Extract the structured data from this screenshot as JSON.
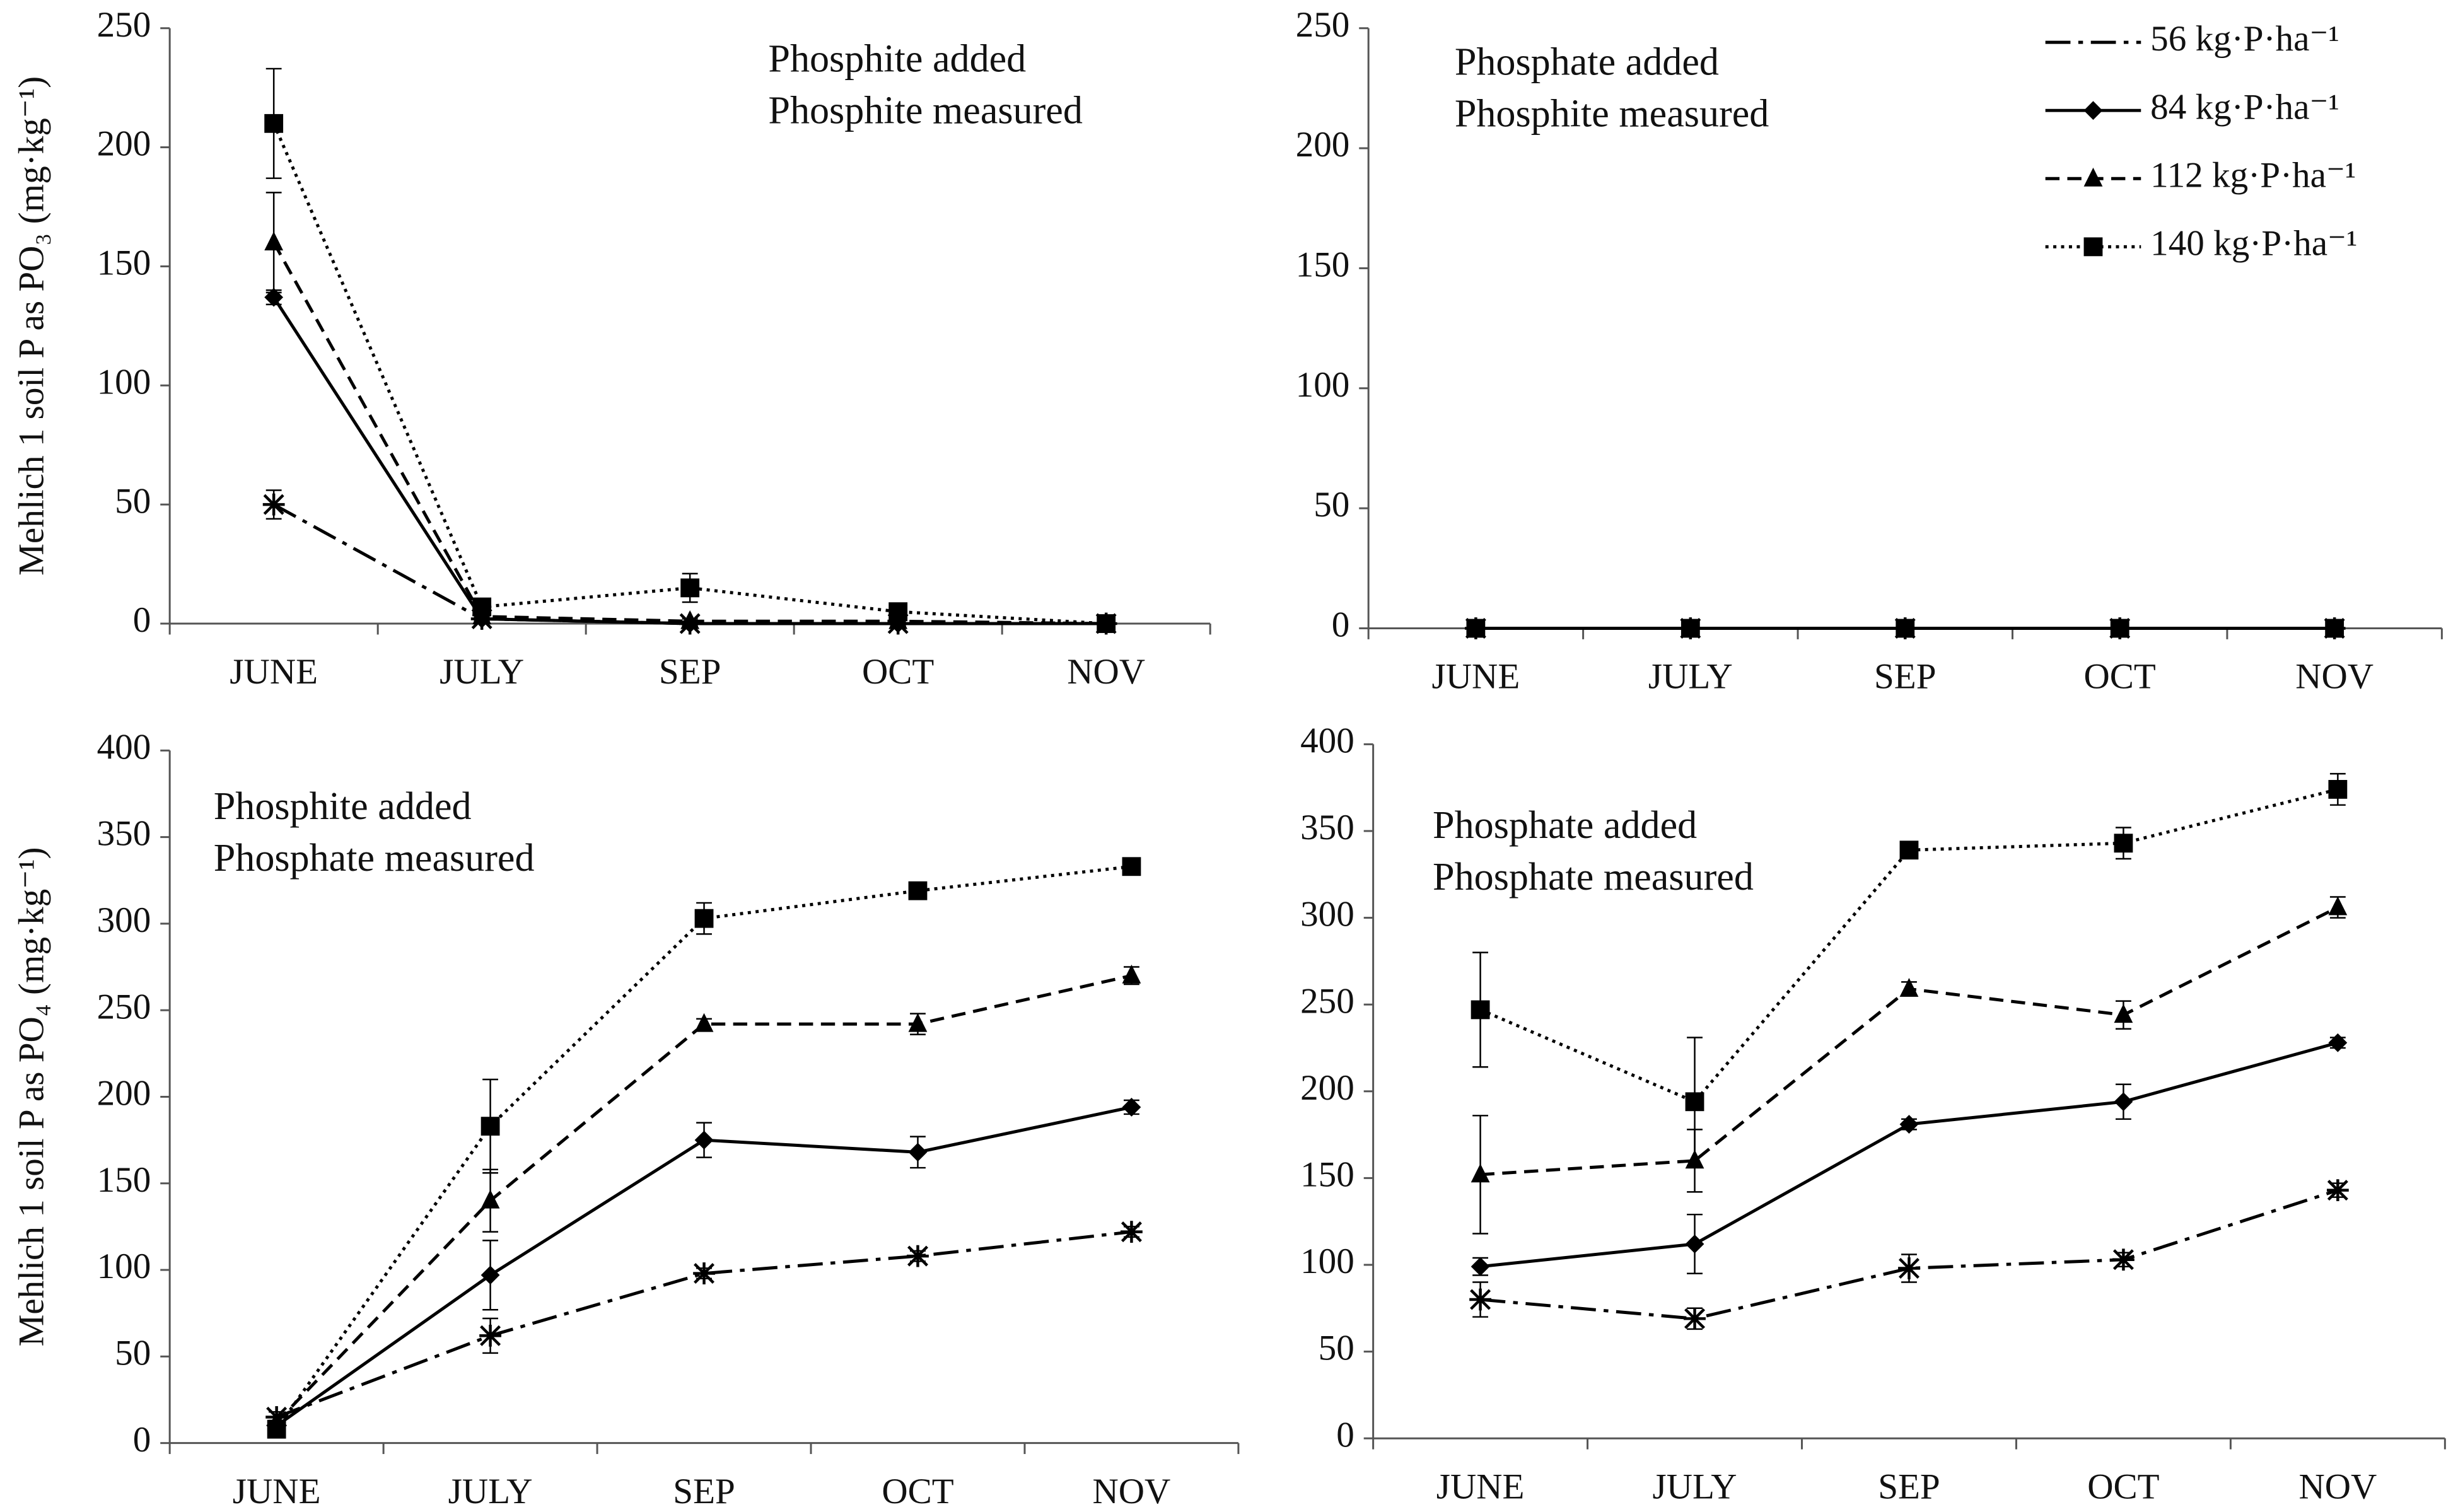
{
  "chart_data": [
    {
      "type": "line",
      "ylabel": "Mehlich 1 soil P as PO₃ (mg·kg⁻¹)",
      "annotation": [
        "Phosphite added",
        "Phosphite measured"
      ],
      "categories": [
        "JUNE",
        "JULY",
        "SEP",
        "OCT",
        "NOV"
      ],
      "ylim": [
        0,
        250
      ],
      "yticks": [
        0,
        50,
        100,
        150,
        200,
        250
      ],
      "series": [
        {
          "color": "#000000",
          "dash": "dashdot",
          "marker": "asterisk",
          "values": [
            50,
            2,
            0,
            0,
            0
          ],
          "errors": [
            6,
            1,
            1,
            1,
            1
          ]
        },
        {
          "color": "#000000",
          "dash": "solid",
          "marker": "diamond",
          "values": [
            137,
            2,
            0,
            0,
            0
          ],
          "errors": [
            3,
            1,
            1,
            1,
            1
          ]
        },
        {
          "color": "#000000",
          "dash": "dashed",
          "marker": "triangle",
          "values": [
            160,
            3,
            1,
            1,
            0
          ],
          "errors": [
            21,
            1,
            1,
            1,
            1
          ]
        },
        {
          "color": "#000000",
          "dash": "dotted",
          "marker": "square",
          "values": [
            210,
            7,
            15,
            5,
            0
          ],
          "errors": [
            23,
            2,
            6,
            2,
            1
          ]
        }
      ]
    },
    {
      "type": "line",
      "annotation": [
        "Phosphate added",
        "Phosphite measured"
      ],
      "categories": [
        "JUNE",
        "JULY",
        "SEP",
        "OCT",
        "NOV"
      ],
      "ylim": [
        0,
        250
      ],
      "yticks": [
        0,
        50,
        100,
        150,
        200,
        250
      ],
      "legend": "upper right",
      "series": [
        {
          "name": "56 kg·P·ha⁻¹",
          "color": "#000000",
          "dash": "dashdot",
          "marker": "asterisk",
          "values": [
            0,
            0,
            0,
            0,
            0
          ]
        },
        {
          "name": "84 kg·P·ha⁻¹",
          "color": "#000000",
          "dash": "solid",
          "marker": "diamond",
          "values": [
            0,
            0,
            0,
            0,
            0
          ]
        },
        {
          "name": "112 kg·P·ha⁻¹",
          "color": "#000000",
          "dash": "dashed",
          "marker": "triangle",
          "values": [
            0,
            0,
            0,
            0,
            0
          ]
        },
        {
          "name": "140 kg·P·ha⁻¹",
          "color": "#000000",
          "dash": "dotted",
          "marker": "square",
          "values": [
            0,
            0,
            0,
            0,
            0
          ]
        }
      ]
    },
    {
      "type": "line",
      "ylabel": "Mehlich 1 soil P as PO₄ (mg·kg⁻¹)",
      "annotation": [
        "Phosphite added",
        "Phosphate measured"
      ],
      "categories": [
        "JUNE",
        "JULY",
        "SEP",
        "OCT",
        "NOV"
      ],
      "ylim": [
        0,
        400
      ],
      "yticks": [
        0,
        50,
        100,
        150,
        200,
        250,
        300,
        350,
        400
      ],
      "series": [
        {
          "color": "#000000",
          "dash": "dashdot",
          "marker": "asterisk",
          "values": [
            15,
            62,
            98,
            108,
            122
          ],
          "errors": [
            3,
            10,
            3,
            3,
            3
          ]
        },
        {
          "color": "#000000",
          "dash": "solid",
          "marker": "diamond",
          "values": [
            10,
            97,
            175,
            168,
            194
          ],
          "errors": [
            3,
            20,
            10,
            9,
            4
          ]
        },
        {
          "color": "#000000",
          "dash": "dashed",
          "marker": "triangle",
          "values": [
            12,
            140,
            242,
            242,
            270
          ],
          "errors": [
            3,
            18,
            3,
            6,
            5
          ]
        },
        {
          "color": "#000000",
          "dash": "dotted",
          "marker": "square",
          "values": [
            8,
            183,
            303,
            319,
            333
          ],
          "errors": [
            3,
            27,
            9,
            4,
            4
          ]
        }
      ]
    },
    {
      "type": "line",
      "annotation": [
        "Phosphate added",
        "Phosphate measured"
      ],
      "categories": [
        "JUNE",
        "JULY",
        "SEP",
        "OCT",
        "NOV"
      ],
      "ylim": [
        0,
        400
      ],
      "yticks": [
        0,
        50,
        100,
        150,
        200,
        250,
        300,
        350,
        400
      ],
      "series": [
        {
          "color": "#000000",
          "dash": "dashdot",
          "marker": "asterisk",
          "values": [
            80,
            69,
            98,
            103,
            143
          ],
          "errors": [
            10,
            6,
            8,
            4,
            4
          ]
        },
        {
          "color": "#000000",
          "dash": "solid",
          "marker": "diamond",
          "values": [
            99,
            112,
            181,
            194,
            228
          ],
          "errors": [
            5,
            17,
            3,
            10,
            3
          ]
        },
        {
          "color": "#000000",
          "dash": "dashed",
          "marker": "triangle",
          "values": [
            152,
            160,
            259,
            244,
            306
          ],
          "errors": [
            34,
            18,
            4,
            8,
            6
          ]
        },
        {
          "color": "#000000",
          "dash": "dotted",
          "marker": "square",
          "values": [
            247,
            194,
            339,
            343,
            374
          ],
          "errors": [
            33,
            37,
            4,
            9,
            9
          ]
        }
      ]
    }
  ]
}
